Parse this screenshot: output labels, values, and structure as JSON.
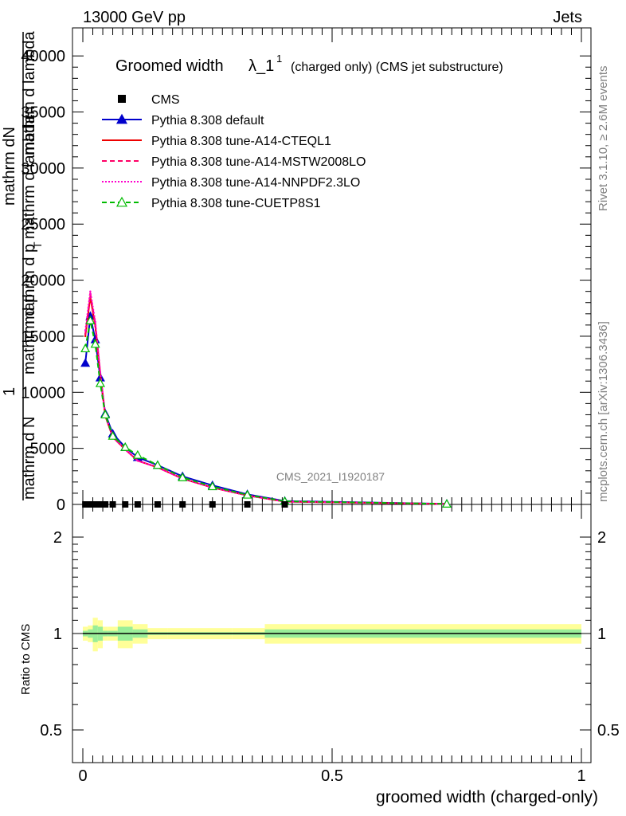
{
  "header": {
    "energy_label": "13000 GeV pp",
    "category_label": "Jets",
    "side_rivet": "Rivet 3.1.10, ≥ 2.6M events",
    "side_site": "mcplots.cern.ch [arXiv:1306.3436]",
    "watermark": "CMS_2021_I1920187"
  },
  "plot_title": {
    "main": "Groomed width",
    "lambda": "λ_1",
    "superscript": "1",
    "suffix": "(charged only) (CMS jet substructure)"
  },
  "chart_data": [
    {
      "type": "line",
      "xlabel": "groomed width (charged-only)",
      "ylabel_parts": [
        "1",
        "mathrm d N",
        "mathrm dN",
        "mathrm d p",
        "T",
        "mathrm d p",
        "mathrm d lambda",
        "mathrm d lambda"
      ],
      "xlim": [
        -0.02,
        1.02
      ],
      "ylim": [
        0,
        42500
      ],
      "yticks": [
        0,
        5000,
        10000,
        15000,
        20000,
        25000,
        30000,
        35000,
        40000
      ],
      "ytick_labels": [
        "0",
        "5000",
        "10000",
        "15000",
        "20000",
        "25000",
        "30000",
        "35000",
        "40000"
      ],
      "legend_position": "top-left",
      "series": [
        {
          "name": "CMS",
          "color": "#000000",
          "marker": "square",
          "line": "none",
          "x": [
            0.005,
            0.015,
            0.025,
            0.035,
            0.045,
            0.06,
            0.085,
            0.11,
            0.15,
            0.2,
            0.26,
            0.33,
            0.405
          ],
          "y": [
            0,
            0,
            0,
            0,
            0,
            0,
            0,
            0,
            0,
            0,
            0,
            0,
            0
          ]
        },
        {
          "name": "Pythia 8.308 default",
          "color": "#0000cc",
          "marker": "triangle",
          "line": "solid",
          "x": [
            0.005,
            0.015,
            0.025,
            0.035,
            0.045,
            0.06,
            0.085,
            0.11,
            0.15,
            0.2,
            0.26,
            0.33,
            0.405,
            0.73
          ],
          "y": [
            12600,
            16800,
            14700,
            11300,
            8100,
            6300,
            5100,
            4200,
            3500,
            2500,
            1700,
            900,
            300,
            50
          ]
        },
        {
          "name": "Pythia 8.308 tune-A14-CTEQL1",
          "color": "#ee0000",
          "marker": "none",
          "line": "solid",
          "x": [
            0.005,
            0.015,
            0.025,
            0.035,
            0.045,
            0.06,
            0.085,
            0.11,
            0.15,
            0.2,
            0.26,
            0.33,
            0.405,
            0.73
          ],
          "y": [
            15000,
            18500,
            15900,
            11600,
            7900,
            6000,
            4900,
            3900,
            3300,
            2300,
            1500,
            800,
            250,
            40
          ]
        },
        {
          "name": "Pythia 8.308 tune-A14-MSTW2008LO",
          "color": "#ff0066",
          "marker": "none",
          "line": "dashed",
          "x": [
            0.005,
            0.015,
            0.025,
            0.035,
            0.045,
            0.06,
            0.085,
            0.11,
            0.15,
            0.2,
            0.26,
            0.33,
            0.405,
            0.73
          ],
          "y": [
            15200,
            18800,
            16100,
            11700,
            7900,
            6000,
            4900,
            3900,
            3300,
            2300,
            1500,
            800,
            250,
            40
          ]
        },
        {
          "name": "Pythia 8.308 tune-A14-NNPDF2.3LO",
          "color": "#ff00cc",
          "marker": "none",
          "line": "dotted",
          "x": [
            0.005,
            0.015,
            0.025,
            0.035,
            0.045,
            0.06,
            0.085,
            0.11,
            0.15,
            0.2,
            0.26,
            0.33,
            0.405,
            0.73
          ],
          "y": [
            15500,
            19000,
            16300,
            11800,
            8000,
            6000,
            4900,
            3900,
            3300,
            2300,
            1500,
            800,
            250,
            40
          ]
        },
        {
          "name": "Pythia 8.308 tune-CUETP8S1",
          "color": "#00bb00",
          "marker": "open-triangle",
          "line": "dashed",
          "x": [
            0.005,
            0.015,
            0.025,
            0.035,
            0.045,
            0.06,
            0.085,
            0.11,
            0.15,
            0.2,
            0.26,
            0.33,
            0.405,
            0.73
          ],
          "y": [
            13900,
            16400,
            14300,
            10800,
            8000,
            6100,
            5100,
            4400,
            3500,
            2400,
            1600,
            850,
            280,
            45
          ]
        }
      ]
    },
    {
      "type": "area",
      "ylabel": "Ratio to CMS",
      "xticks": [
        0,
        0.5,
        1
      ],
      "xtick_labels": [
        "0",
        "0.5",
        "1"
      ],
      "yticks": [
        0.5,
        1,
        2
      ],
      "ytick_labels": [
        "0.5",
        "1",
        "2"
      ],
      "ylim": [
        0.4,
        2.35
      ],
      "yscale": "log",
      "reference": 1,
      "bins": [
        {
          "x0": 0.0,
          "x1": 0.01,
          "stat": 0.02,
          "total": 0.05
        },
        {
          "x0": 0.01,
          "x1": 0.02,
          "stat": 0.03,
          "total": 0.06
        },
        {
          "x0": 0.02,
          "x1": 0.03,
          "stat": 0.06,
          "total": 0.12
        },
        {
          "x0": 0.03,
          "x1": 0.04,
          "stat": 0.05,
          "total": 0.1
        },
        {
          "x0": 0.04,
          "x1": 0.05,
          "stat": 0.02,
          "total": 0.05
        },
        {
          "x0": 0.05,
          "x1": 0.07,
          "stat": 0.02,
          "total": 0.05
        },
        {
          "x0": 0.07,
          "x1": 0.1,
          "stat": 0.05,
          "total": 0.1
        },
        {
          "x0": 0.1,
          "x1": 0.13,
          "stat": 0.03,
          "total": 0.07
        },
        {
          "x0": 0.13,
          "x1": 0.17,
          "stat": 0.01,
          "total": 0.04
        },
        {
          "x0": 0.17,
          "x1": 0.23,
          "stat": 0.01,
          "total": 0.04
        },
        {
          "x0": 0.23,
          "x1": 0.3,
          "stat": 0.01,
          "total": 0.04
        },
        {
          "x0": 0.3,
          "x1": 0.365,
          "stat": 0.01,
          "total": 0.04
        },
        {
          "x0": 0.365,
          "x1": 1.0,
          "stat": 0.03,
          "total": 0.07
        }
      ]
    }
  ]
}
